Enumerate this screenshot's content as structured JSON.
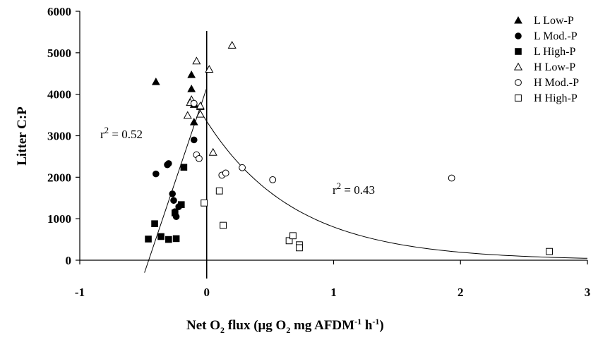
{
  "chart_data": {
    "type": "scatter",
    "title": "",
    "xlabel": "Net O2 flux (μg O2 mg AFDM-1 h-1)",
    "ylabel": "Litter C:P",
    "xlim": [
      -1,
      3
    ],
    "ylim": [
      0,
      6000
    ],
    "x_ticks": [
      "-1",
      "0",
      "1",
      "2",
      "3"
    ],
    "y_ticks": [
      "0",
      "1000",
      "2000",
      "3000",
      "4000",
      "5000",
      "6000"
    ],
    "grid": false,
    "legend_position": "top-right",
    "series": [
      {
        "name": "L Low-P",
        "marker": "triangle-filled",
        "x": [
          -0.4,
          -0.12,
          -0.12,
          -0.1,
          -0.05,
          -0.1
        ],
        "y": [
          4300,
          4470,
          4130,
          3750,
          3700,
          3330
        ]
      },
      {
        "name": "L Mod.-P",
        "marker": "circle-filled",
        "x": [
          -0.4,
          -0.31,
          -0.3,
          -0.27,
          -0.26,
          -0.25,
          -0.22,
          -0.24,
          -0.1
        ],
        "y": [
          2080,
          2300,
          2330,
          1600,
          1440,
          1170,
          1290,
          1050,
          2900
        ]
      },
      {
        "name": "L High-P",
        "marker": "square-filled",
        "x": [
          -0.46,
          -0.41,
          -0.36,
          -0.3,
          -0.25,
          -0.24,
          -0.2,
          -0.18
        ],
        "y": [
          510,
          880,
          570,
          500,
          1140,
          520,
          1340,
          2240
        ]
      },
      {
        "name": "H Low-P",
        "marker": "triangle-open",
        "x": [
          -0.08,
          -0.12,
          -0.13,
          -0.15,
          -0.05,
          -0.05,
          0.02,
          0.05,
          0.2
        ],
        "y": [
          4800,
          3870,
          3800,
          3490,
          3520,
          3720,
          4600,
          2600,
          5180
        ]
      },
      {
        "name": "H Mod.-P",
        "marker": "circle-open",
        "x": [
          -0.1,
          -0.08,
          -0.06,
          0.12,
          0.15,
          0.28,
          0.52,
          1.93
        ],
        "y": [
          3780,
          2540,
          2450,
          2050,
          2100,
          2230,
          1940,
          1980
        ]
      },
      {
        "name": "H High-P",
        "marker": "square-open",
        "x": [
          -0.02,
          0.1,
          0.13,
          0.65,
          0.68,
          0.73,
          0.73,
          2.7
        ],
        "y": [
          1380,
          1670,
          840,
          470,
          590,
          370,
          300,
          210
        ]
      }
    ],
    "fits": [
      {
        "label": "r² = 0.52",
        "form": "linear",
        "x_start": -0.49,
        "x_end": 0.0,
        "y_start": -300,
        "y_end": 4150
      },
      {
        "label": "r² = 0.43",
        "form": "exponential-decay",
        "a": 3350,
        "b": 1.43,
        "x_start": -0.1,
        "x_end": 3.0
      }
    ],
    "annotations": [
      {
        "text_base": "r",
        "text_sup": "2",
        "text_rest": " = 0.52"
      },
      {
        "text_base": "r",
        "text_sup": "2",
        "text_rest": " = 0.43"
      }
    ],
    "reference_line_x": 0
  },
  "axis_titles": {
    "y": "Litter C:P",
    "x_parts": [
      "Net O",
      "2",
      " flux (μg O",
      "2",
      " mg AFDM",
      "-1",
      " h",
      "-1",
      ")"
    ]
  },
  "legend": [
    {
      "label": "L Low-P",
      "marker": "triangle-filled"
    },
    {
      "label": "L Mod.-P",
      "marker": "circle-filled"
    },
    {
      "label": "L High-P",
      "marker": "square-filled"
    },
    {
      "label": "H Low-P",
      "marker": "triangle-open"
    },
    {
      "label": "H Mod.-P",
      "marker": "circle-open"
    },
    {
      "label": "H High-P",
      "marker": "square-open"
    }
  ]
}
